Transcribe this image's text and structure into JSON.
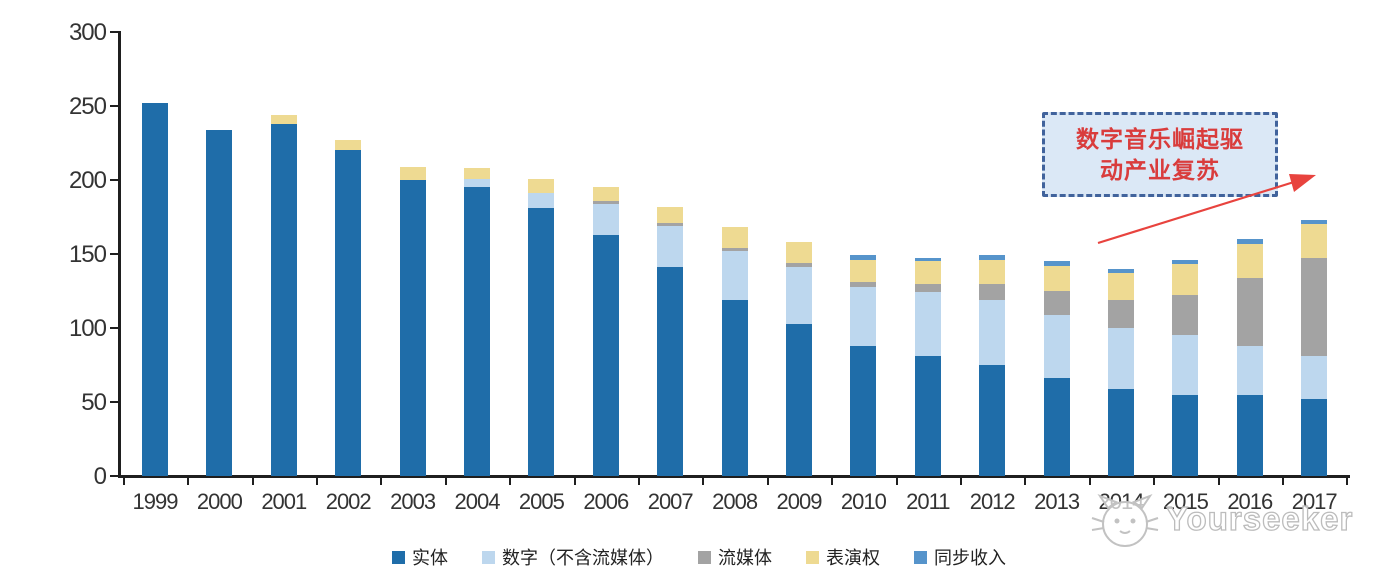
{
  "chart_data": {
    "type": "bar",
    "stacked": true,
    "title": "",
    "categories": [
      "1999",
      "2000",
      "2001",
      "2002",
      "2003",
      "2004",
      "2005",
      "2006",
      "2007",
      "2008",
      "2009",
      "2010",
      "2011",
      "2012",
      "2013",
      "2014",
      "2015",
      "2016",
      "2017"
    ],
    "series": [
      {
        "name": "实体",
        "color": "#1f6da9",
        "values": [
          252,
          234,
          238,
          220,
          200,
          195,
          181,
          163,
          141,
          119,
          103,
          88,
          81,
          75,
          66,
          59,
          55,
          55,
          52
        ]
      },
      {
        "name": "数字（不含流媒体）",
        "color": "#bdd7ee",
        "values": [
          0,
          0,
          0,
          0,
          0,
          6,
          10,
          21,
          28,
          33,
          38,
          40,
          43,
          44,
          43,
          41,
          40,
          33,
          29
        ]
      },
      {
        "name": "流媒体",
        "color": "#a3a3a3",
        "values": [
          0,
          0,
          0,
          0,
          0,
          0,
          0,
          2,
          2,
          2,
          3,
          3,
          6,
          11,
          16,
          19,
          27,
          46,
          66
        ]
      },
      {
        "name": "表演权",
        "color": "#eeda92",
        "values": [
          0,
          0,
          6,
          7,
          9,
          7,
          10,
          9,
          11,
          14,
          14,
          15,
          15,
          16,
          17,
          18,
          21,
          23,
          23
        ]
      },
      {
        "name": "同步收入",
        "color": "#5694cb",
        "values": [
          0,
          0,
          0,
          0,
          0,
          0,
          0,
          0,
          0,
          0,
          0,
          3,
          2,
          3,
          3,
          3,
          3,
          3,
          3
        ]
      }
    ],
    "ylim": [
      0,
      300
    ],
    "yticks": [
      0,
      50,
      100,
      150,
      200,
      250,
      300
    ],
    "grid": false,
    "legend_position": "bottom"
  },
  "annotation": {
    "line1": "数字音乐崛起驱",
    "line2": "动产业复苏",
    "box_fill": "#dbe8f6",
    "box_border": "#41639c",
    "text_color": "#d93c3c",
    "arrow_color": "#e8433e"
  },
  "watermark": {
    "text": "Yourseeker"
  }
}
